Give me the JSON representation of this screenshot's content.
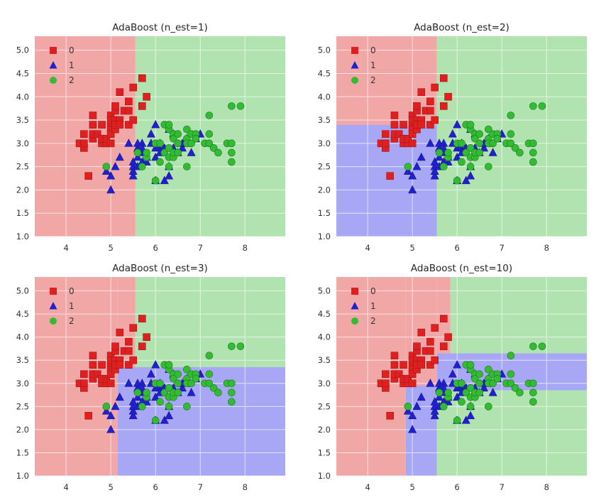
{
  "colors": {
    "region": {
      "0": "#f2a7a7",
      "1": "#a7a7f5",
      "2": "#b0e3b0"
    },
    "marker": {
      "0": "#e02020",
      "1": "#2020d0",
      "2": "#33bb33"
    },
    "grid": "#ffffff"
  },
  "chart_data": [
    {
      "type": "scatter",
      "title": "AdaBoost (n_est=1)",
      "xlim": [
        3.3,
        8.9
      ],
      "ylim": [
        1.0,
        5.3
      ],
      "xticks": [
        "4",
        "5",
        "6",
        "7",
        "8"
      ],
      "yticks": [
        "1.0",
        "1.5",
        "2.0",
        "2.5",
        "3.0",
        "3.5",
        "4.0",
        "4.5",
        "5.0"
      ],
      "legend": {
        "placement": "top-left",
        "entries": [
          {
            "label": "0",
            "marker": "square"
          },
          {
            "label": "1",
            "marker": "triangle"
          },
          {
            "label": "2",
            "marker": "circle"
          }
        ]
      },
      "grid": true,
      "decision_regions": [
        {
          "class": 0,
          "x": [
            3.3,
            5.55
          ],
          "y": [
            1.0,
            5.3
          ]
        },
        {
          "class": 2,
          "x": [
            5.55,
            8.9
          ],
          "y": [
            1.0,
            5.3
          ]
        }
      ]
    },
    {
      "type": "scatter",
      "title": "AdaBoost (n_est=2)",
      "xlim": [
        3.3,
        8.9
      ],
      "ylim": [
        1.0,
        5.3
      ],
      "xticks": [
        "4",
        "5",
        "6",
        "7",
        "8"
      ],
      "yticks": [
        "1.0",
        "1.5",
        "2.0",
        "2.5",
        "3.0",
        "3.5",
        "4.0",
        "4.5",
        "5.0"
      ],
      "legend": {
        "placement": "top-left",
        "entries": [
          {
            "label": "0",
            "marker": "square"
          },
          {
            "label": "1",
            "marker": "triangle"
          },
          {
            "label": "2",
            "marker": "circle"
          }
        ]
      },
      "grid": true,
      "decision_regions": [
        {
          "class": 0,
          "x": [
            3.3,
            5.55
          ],
          "y": [
            3.4,
            5.3
          ]
        },
        {
          "class": 1,
          "x": [
            3.3,
            5.55
          ],
          "y": [
            1.0,
            3.4
          ]
        },
        {
          "class": 2,
          "x": [
            5.55,
            8.9
          ],
          "y": [
            1.0,
            5.3
          ]
        }
      ]
    },
    {
      "type": "scatter",
      "title": "AdaBoost (n_est=3)",
      "xlim": [
        3.3,
        8.9
      ],
      "ylim": [
        1.0,
        5.3
      ],
      "xticks": [
        "4",
        "5",
        "6",
        "7",
        "8"
      ],
      "yticks": [
        "1.0",
        "1.5",
        "2.0",
        "2.5",
        "3.0",
        "3.5",
        "4.0",
        "4.5",
        "5.0"
      ],
      "legend": {
        "placement": "top-left",
        "entries": [
          {
            "label": "0",
            "marker": "square"
          },
          {
            "label": "1",
            "marker": "triangle"
          },
          {
            "label": "2",
            "marker": "circle"
          }
        ]
      },
      "grid": true,
      "decision_regions": [
        {
          "class": 0,
          "x": [
            3.3,
            5.15
          ],
          "y": [
            1.0,
            5.3
          ]
        },
        {
          "class": 0,
          "x": [
            5.15,
            5.55
          ],
          "y": [
            3.35,
            5.3
          ]
        },
        {
          "class": 1,
          "x": [
            5.15,
            8.9
          ],
          "y": [
            1.0,
            3.35
          ]
        },
        {
          "class": 2,
          "x": [
            5.55,
            8.9
          ],
          "y": [
            3.35,
            5.3
          ]
        }
      ]
    },
    {
      "type": "scatter",
      "title": "AdaBoost (n_est=10)",
      "xlim": [
        3.3,
        8.9
      ],
      "ylim": [
        1.0,
        5.3
      ],
      "xticks": [
        "4",
        "5",
        "6",
        "7",
        "8"
      ],
      "yticks": [
        "1.0",
        "1.5",
        "2.0",
        "2.5",
        "3.0",
        "3.5",
        "4.0",
        "4.5",
        "5.0"
      ],
      "legend": {
        "placement": "top-left",
        "entries": [
          {
            "label": "0",
            "marker": "square"
          },
          {
            "label": "1",
            "marker": "triangle"
          },
          {
            "label": "2",
            "marker": "circle"
          }
        ]
      },
      "grid": true,
      "decision_regions": [
        {
          "class": 0,
          "x": [
            3.3,
            4.85
          ],
          "y": [
            1.0,
            5.3
          ]
        },
        {
          "class": 0,
          "x": [
            4.85,
            5.55
          ],
          "y": [
            2.95,
            5.3
          ]
        },
        {
          "class": 0,
          "x": [
            5.55,
            5.85
          ],
          "y": [
            3.65,
            5.3
          ]
        },
        {
          "class": 1,
          "x": [
            4.85,
            5.55
          ],
          "y": [
            1.0,
            2.95
          ]
        },
        {
          "class": 1,
          "x": [
            5.55,
            8.9
          ],
          "y": [
            2.85,
            3.65
          ]
        },
        {
          "class": 2,
          "x": [
            5.55,
            8.9
          ],
          "y": [
            1.0,
            2.85
          ]
        },
        {
          "class": 2,
          "x": [
            5.85,
            8.9
          ],
          "y": [
            3.65,
            5.3
          ]
        }
      ]
    }
  ],
  "points": [
    {
      "name": "0",
      "marker": "square",
      "values": [
        [
          4.3,
          3.0
        ],
        [
          4.4,
          2.9
        ],
        [
          4.4,
          3.0
        ],
        [
          4.4,
          3.2
        ],
        [
          4.5,
          2.3
        ],
        [
          4.6,
          3.1
        ],
        [
          4.6,
          3.4
        ],
        [
          4.6,
          3.6
        ],
        [
          4.6,
          3.2
        ],
        [
          4.7,
          3.2
        ],
        [
          4.8,
          3.4
        ],
        [
          4.8,
          3.0
        ],
        [
          4.8,
          3.1
        ],
        [
          4.9,
          3.0
        ],
        [
          4.9,
          3.1
        ],
        [
          5.0,
          3.6
        ],
        [
          5.0,
          3.4
        ],
        [
          5.0,
          3.0
        ],
        [
          5.0,
          3.3
        ],
        [
          5.0,
          3.5
        ],
        [
          5.0,
          3.2
        ],
        [
          5.1,
          3.5
        ],
        [
          5.1,
          3.7
        ],
        [
          5.1,
          3.3
        ],
        [
          5.1,
          3.8
        ],
        [
          5.1,
          3.4
        ],
        [
          5.2,
          3.5
        ],
        [
          5.2,
          3.4
        ],
        [
          5.2,
          4.1
        ],
        [
          5.3,
          3.7
        ],
        [
          5.4,
          3.9
        ],
        [
          5.4,
          3.7
        ],
        [
          5.4,
          3.4
        ],
        [
          5.5,
          4.2
        ],
        [
          5.5,
          3.5
        ],
        [
          5.7,
          4.4
        ],
        [
          5.7,
          3.8
        ],
        [
          5.8,
          4.0
        ]
      ]
    },
    {
      "name": "1",
      "marker": "triangle",
      "values": [
        [
          4.9,
          2.4
        ],
        [
          5.0,
          2.0
        ],
        [
          5.0,
          2.3
        ],
        [
          5.1,
          2.5
        ],
        [
          5.2,
          2.7
        ],
        [
          5.4,
          3.0
        ],
        [
          5.5,
          2.3
        ],
        [
          5.5,
          2.4
        ],
        [
          5.5,
          2.5
        ],
        [
          5.5,
          2.6
        ],
        [
          5.6,
          2.9
        ],
        [
          5.6,
          3.0
        ],
        [
          5.6,
          2.5
        ],
        [
          5.6,
          2.7
        ],
        [
          5.7,
          2.8
        ],
        [
          5.7,
          2.6
        ],
        [
          5.7,
          3.0
        ],
        [
          5.7,
          2.9
        ],
        [
          5.8,
          2.7
        ],
        [
          5.8,
          2.6
        ],
        [
          5.9,
          3.0
        ],
        [
          5.9,
          3.2
        ],
        [
          6.0,
          2.2
        ],
        [
          6.0,
          2.9
        ],
        [
          6.0,
          2.7
        ],
        [
          6.0,
          3.4
        ],
        [
          6.1,
          2.9
        ],
        [
          6.1,
          2.8
        ],
        [
          6.1,
          3.0
        ],
        [
          6.2,
          2.2
        ],
        [
          6.2,
          2.9
        ],
        [
          6.3,
          3.3
        ],
        [
          6.3,
          2.5
        ],
        [
          6.3,
          2.3
        ],
        [
          6.4,
          3.2
        ],
        [
          6.4,
          2.9
        ],
        [
          6.5,
          2.8
        ],
        [
          6.6,
          2.9
        ],
        [
          6.6,
          3.0
        ],
        [
          6.7,
          3.1
        ],
        [
          6.7,
          3.0
        ],
        [
          6.8,
          2.8
        ],
        [
          6.9,
          3.1
        ],
        [
          7.0,
          3.2
        ]
      ]
    },
    {
      "name": "2",
      "marker": "circle",
      "values": [
        [
          4.9,
          2.5
        ],
        [
          5.6,
          2.8
        ],
        [
          5.7,
          2.5
        ],
        [
          5.8,
          2.7
        ],
        [
          5.8,
          2.8
        ],
        [
          6.0,
          2.2
        ],
        [
          6.0,
          3.0
        ],
        [
          6.1,
          3.0
        ],
        [
          6.1,
          2.6
        ],
        [
          6.2,
          2.8
        ],
        [
          6.2,
          3.4
        ],
        [
          6.3,
          3.3
        ],
        [
          6.3,
          2.9
        ],
        [
          6.3,
          2.7
        ],
        [
          6.3,
          2.5
        ],
        [
          6.3,
          3.4
        ],
        [
          6.4,
          2.7
        ],
        [
          6.4,
          3.2
        ],
        [
          6.4,
          2.8
        ],
        [
          6.4,
          3.1
        ],
        [
          6.5,
          3.0
        ],
        [
          6.5,
          3.2
        ],
        [
          6.5,
          2.8
        ],
        [
          6.7,
          2.5
        ],
        [
          6.7,
          3.3
        ],
        [
          6.7,
          3.1
        ],
        [
          6.7,
          3.0
        ],
        [
          6.8,
          3.0
        ],
        [
          6.8,
          3.2
        ],
        [
          6.9,
          3.2
        ],
        [
          6.9,
          3.1
        ],
        [
          7.1,
          3.0
        ],
        [
          7.2,
          3.6
        ],
        [
          7.2,
          3.2
        ],
        [
          7.2,
          3.0
        ],
        [
          7.3,
          2.9
        ],
        [
          7.4,
          2.8
        ],
        [
          7.6,
          3.0
        ],
        [
          7.7,
          3.8
        ],
        [
          7.7,
          2.6
        ],
        [
          7.7,
          2.8
        ],
        [
          7.7,
          3.0
        ],
        [
          7.9,
          3.8
        ]
      ]
    }
  ]
}
